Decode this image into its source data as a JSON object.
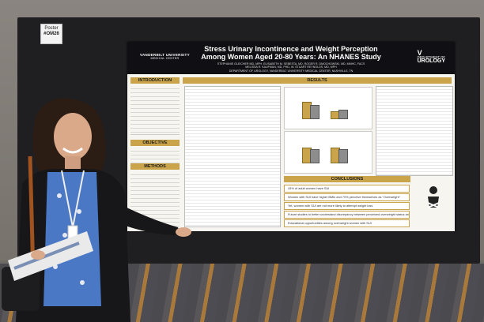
{
  "poster_tag": {
    "line1": "Poster",
    "line2": "#OM26"
  },
  "poster": {
    "title_line1": "Stress Urinary Incontinence and Weight Perception",
    "title_line2": "Among Women Aged 20-80 Years: An NHANES Study",
    "authors_line1": "STEPHANIE GLEICHER MD, MPH, ELISABETH M. SEBESTA, MD, ROGER R. DMOCHOWSKI, MD, MMHC, FACS",
    "authors_line2": "MELISSA R. KAUFMAN, MD, PHD, W. STUART REYNOLDS, MD, MPH",
    "department": "DEPARTMENT OF UROLOGY, VANDERBILT UNIVERSITY MEDICAL CENTER, NASHVILLE, TN",
    "logo_left": "VANDERBILT UNIVERSITY",
    "logo_left_sub": "MEDICAL CENTER",
    "logo_right_line1": "DEPARTMENT OF",
    "logo_right_line2": "UROLOGY",
    "sections": {
      "introduction": "INTRODUCTION",
      "objective": "OBJECTIVE",
      "methods": "METHODS",
      "results": "RESULTS",
      "conclusions": "CONCLUSIONS"
    },
    "conclusions": [
      "43% of adult women have SUI",
      "Women with SUI have higher BMIs and 70% perceive themselves as \"Overweight\"",
      "Yet, women with SUI are not more likely to attempt weight loss",
      "Future studies to better understand discrepancy between perceived overweight status and weight loss motivation",
      "Educational opportunities among overweight women with SUI"
    ]
  }
}
